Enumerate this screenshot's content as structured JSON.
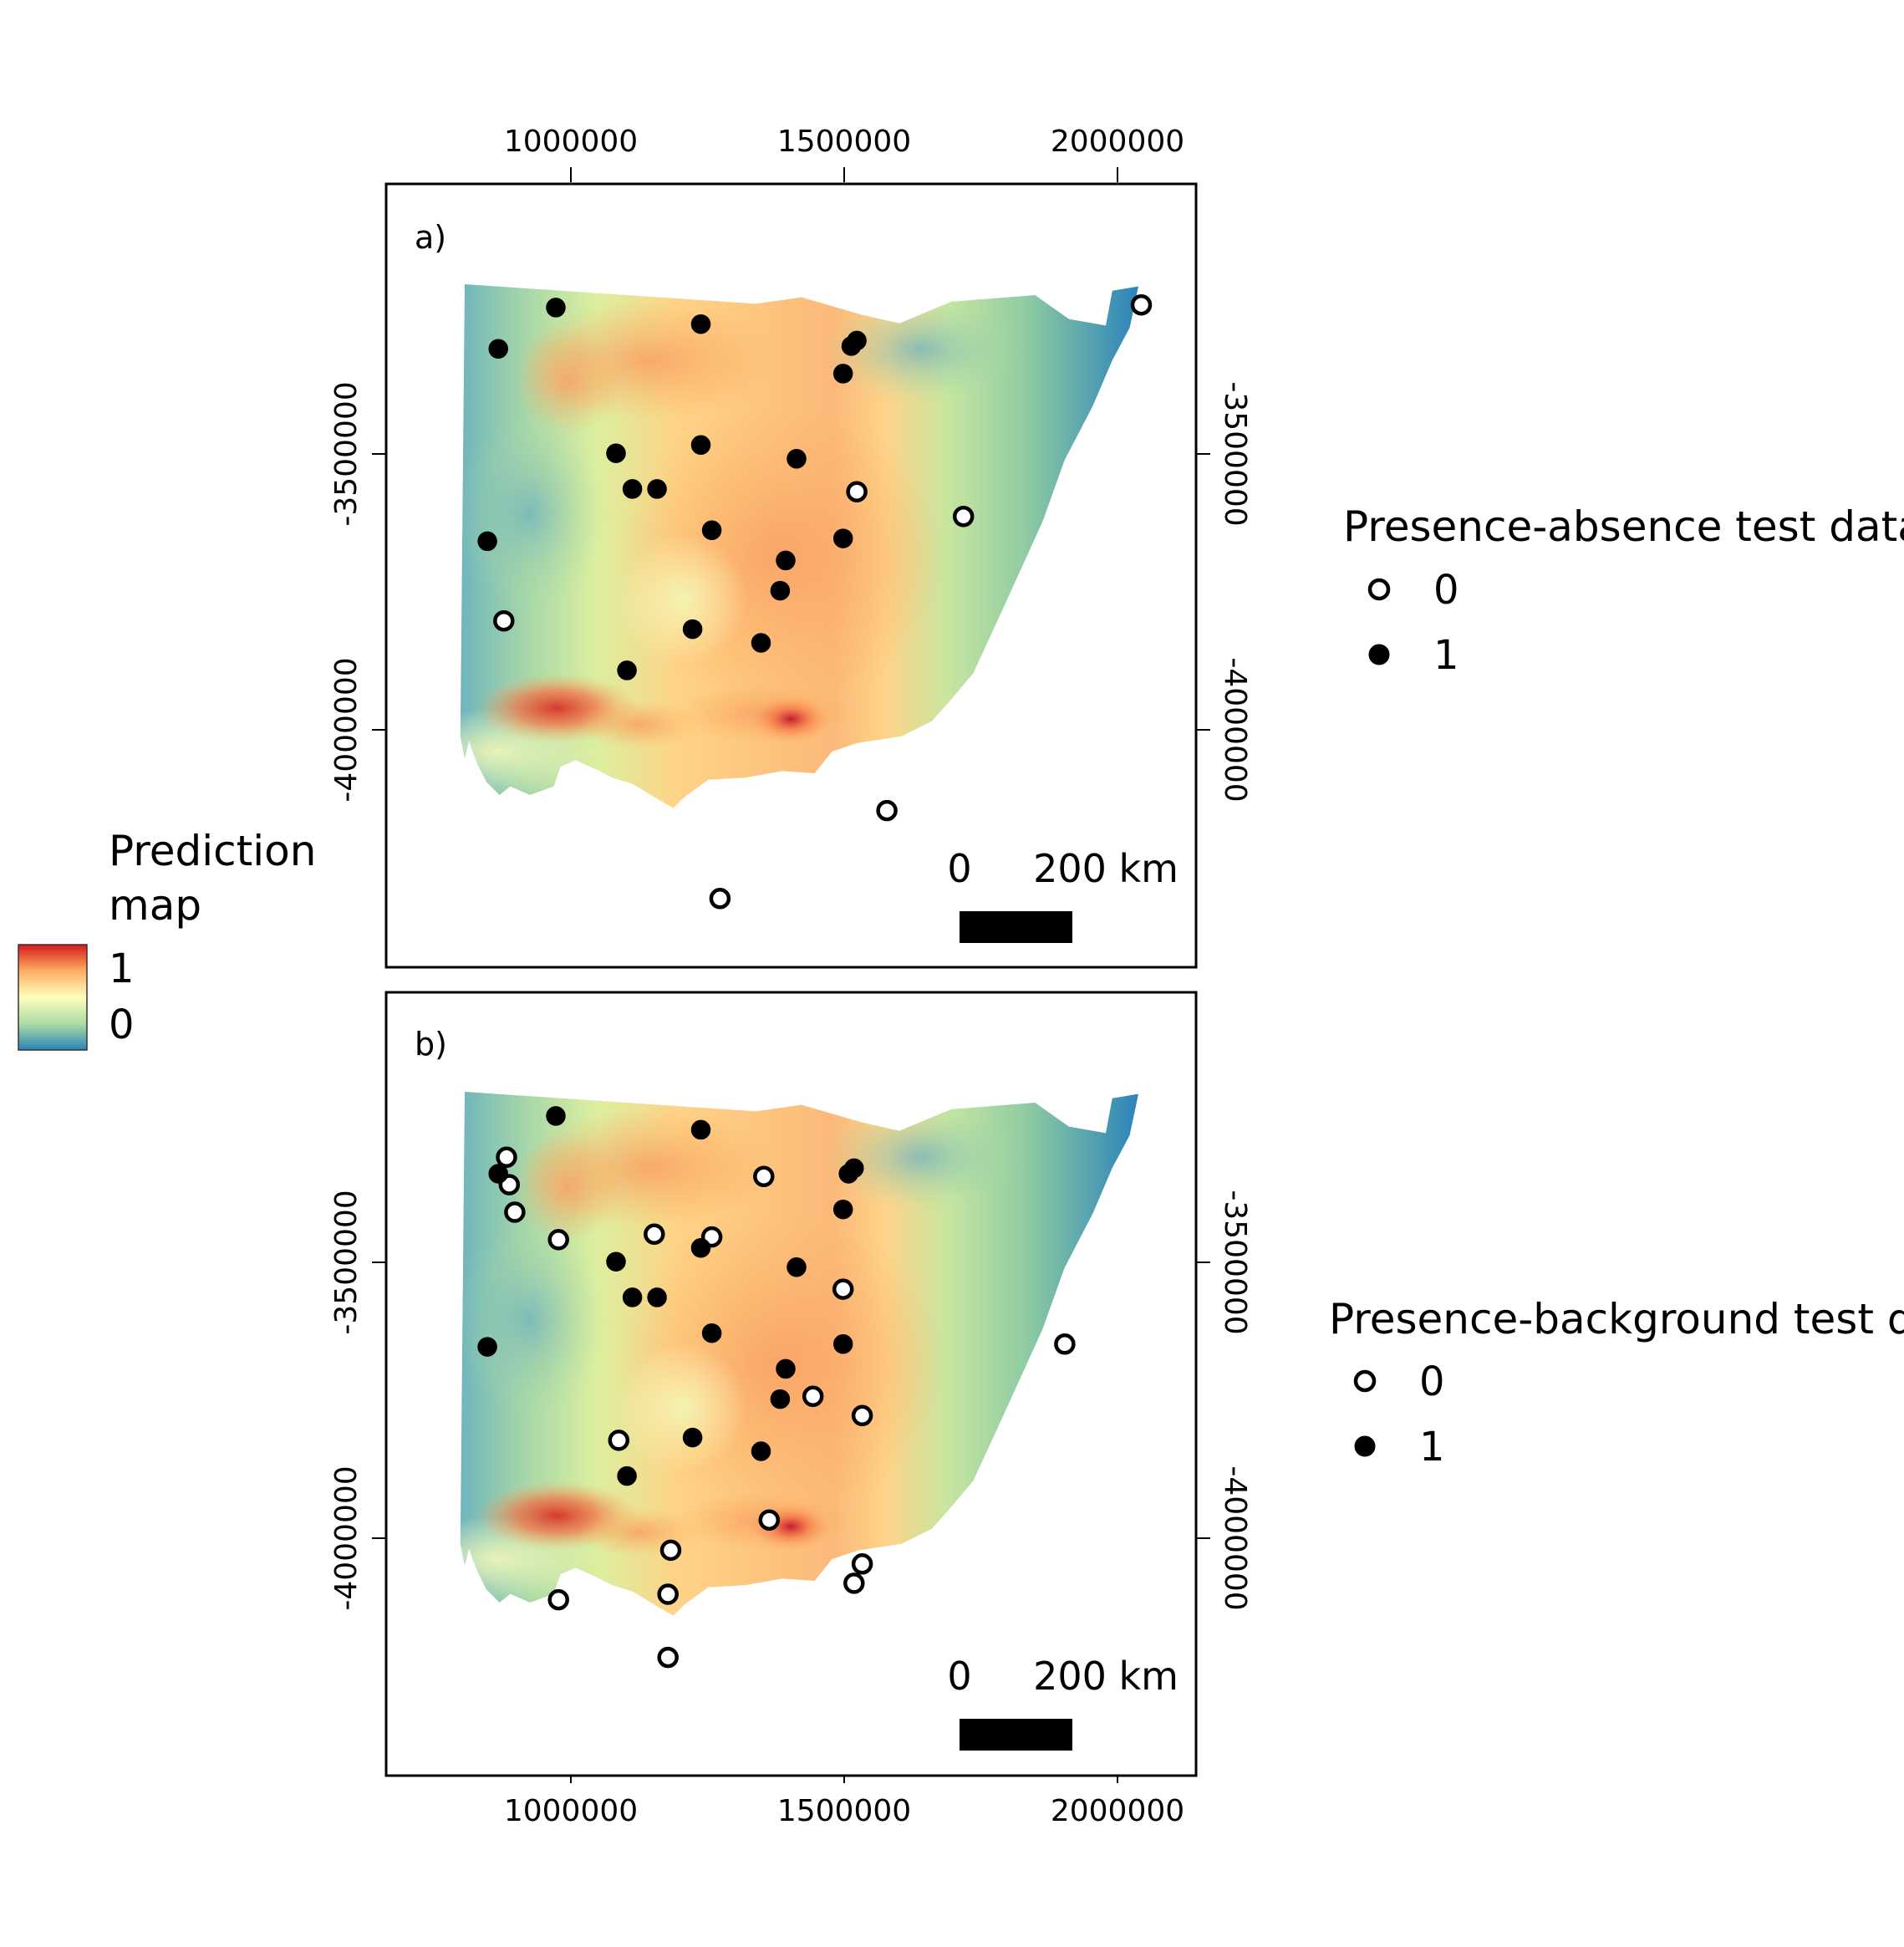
{
  "colorbar": {
    "title_line1": "Prediction",
    "title_line2": "map",
    "max_label": "1",
    "min_label": "0",
    "colors": [
      "#d7191c",
      "#fdae61",
      "#ffffbf",
      "#abdda4",
      "#2b83ba"
    ]
  },
  "axes": {
    "x_ticks": [
      "1000000",
      "1500000",
      "2000000"
    ],
    "y_ticks": [
      "-3500000",
      "-4000000"
    ]
  },
  "panels": [
    {
      "label": "a)",
      "scale": {
        "zero": "0",
        "distance": "200 km"
      },
      "legend": {
        "title": "Presence-absence test data",
        "items": [
          {
            "label": "0",
            "style": "open"
          },
          {
            "label": "1",
            "style": "filled"
          }
        ]
      }
    },
    {
      "label": "b)",
      "scale": {
        "zero": "0",
        "distance": "200 km"
      },
      "legend": {
        "title": "Presence-background test data",
        "items": [
          {
            "label": "0",
            "style": "open"
          },
          {
            "label": "1",
            "style": "filled"
          }
        ]
      }
    }
  ],
  "chart_data": [
    {
      "type": "scatter",
      "title": "a)",
      "background": "prediction map raster (0 to 1)",
      "x_ticks": [
        1000000,
        1500000,
        2000000
      ],
      "y_ticks": [
        -3500000,
        -4000000
      ],
      "xlim": [
        660000,
        2140000
      ],
      "ylim": [
        -4430000,
        -3005000
      ],
      "series": [
        {
          "name": "0",
          "points": [
            [
              2040000,
              -3225000
            ],
            [
              1520000,
              -3565000
            ],
            [
              1715000,
              -3610000
            ],
            [
              875000,
              -3800000
            ],
            [
              1575000,
              -4145000
            ],
            [
              1270000,
              -4305000
            ]
          ]
        },
        {
          "name": "1",
          "points": [
            [
              970000,
              -3230000
            ],
            [
              865000,
              -3305000
            ],
            [
              1235000,
              -3260000
            ],
            [
              1510000,
              -3300000
            ],
            [
              1520000,
              -3290000
            ],
            [
              1495000,
              -3350000
            ],
            [
              1080000,
              -3495000
            ],
            [
              1235000,
              -3480000
            ],
            [
              1410000,
              -3505000
            ],
            [
              1110000,
              -3560000
            ],
            [
              1155000,
              -3560000
            ],
            [
              1255000,
              -3635000
            ],
            [
              845000,
              -3655000
            ],
            [
              1495000,
              -3650000
            ],
            [
              1390000,
              -3690000
            ],
            [
              1380000,
              -3745000
            ],
            [
              1220000,
              -3815000
            ],
            [
              1345000,
              -3840000
            ],
            [
              1100000,
              -3890000
            ]
          ]
        }
      ]
    },
    {
      "type": "scatter",
      "title": "b)",
      "background": "prediction map raster (0 to 1)",
      "x_ticks": [
        1000000,
        1500000,
        2000000
      ],
      "y_ticks": [
        -3500000,
        -4000000
      ],
      "xlim": [
        660000,
        2140000
      ],
      "ylim": [
        -4430000,
        -3005000
      ],
      "series": [
        {
          "name": "0",
          "points": [
            [
              880000,
              -3305000
            ],
            [
              885000,
              -3355000
            ],
            [
              895000,
              -3405000
            ],
            [
              975000,
              -3455000
            ],
            [
              1350000,
              -3340000
            ],
            [
              1150000,
              -3445000
            ],
            [
              1255000,
              -3450000
            ],
            [
              1495000,
              -3545000
            ],
            [
              1900000,
              -3645000
            ],
            [
              1440000,
              -3740000
            ],
            [
              1530000,
              -3775000
            ],
            [
              1085000,
              -3820000
            ],
            [
              1360000,
              -3965000
            ],
            [
              1180000,
              -4020000
            ],
            [
              1530000,
              -4045000
            ],
            [
              1515000,
              -4080000
            ],
            [
              975000,
              -4110000
            ],
            [
              1175000,
              -4100000
            ],
            [
              1175000,
              -4215000
            ]
          ]
        },
        {
          "name": "1",
          "points": [
            [
              970000,
              -3230000
            ],
            [
              865000,
              -3335000
            ],
            [
              1235000,
              -3255000
            ],
            [
              1505000,
              -3335000
            ],
            [
              1515000,
              -3325000
            ],
            [
              1495000,
              -3400000
            ],
            [
              1235000,
              -3470000
            ],
            [
              1080000,
              -3495000
            ],
            [
              1410000,
              -3505000
            ],
            [
              1110000,
              -3560000
            ],
            [
              1155000,
              -3560000
            ],
            [
              1255000,
              -3625000
            ],
            [
              845000,
              -3650000
            ],
            [
              1495000,
              -3645000
            ],
            [
              1390000,
              -3690000
            ],
            [
              1380000,
              -3745000
            ],
            [
              1220000,
              -3815000
            ],
            [
              1345000,
              -3840000
            ],
            [
              1100000,
              -3885000
            ]
          ]
        }
      ]
    }
  ]
}
